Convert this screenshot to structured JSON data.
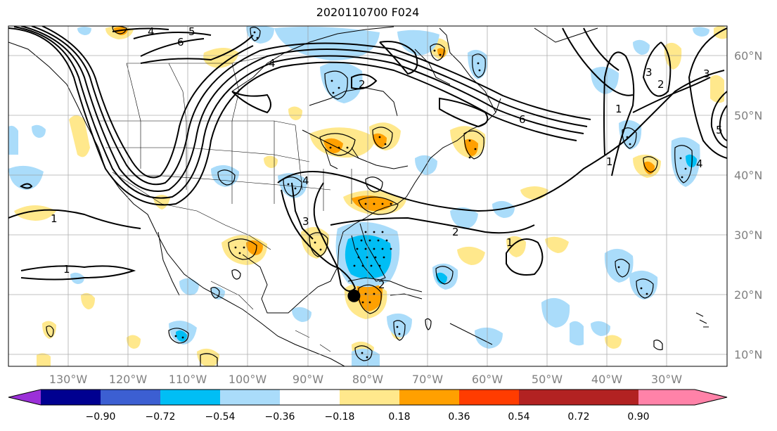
{
  "title": "2020110700 F024",
  "map": {
    "lon_labels": [
      "130°W",
      "120°W",
      "110°W",
      "100°W",
      "90°W",
      "80°W",
      "70°W",
      "60°W",
      "50°W",
      "40°W",
      "30°W"
    ],
    "lat_labels": [
      "60°N",
      "50°N",
      "40°N",
      "30°N",
      "20°N",
      "10°N"
    ],
    "lon_range": [
      -138,
      -18
    ],
    "lat_range": [
      8,
      65
    ],
    "contour_labels": [
      "4",
      "5",
      "6",
      "4",
      "2",
      "6",
      "4",
      "3",
      "3",
      "1",
      "1",
      "2",
      "1",
      "1",
      "1",
      "2",
      "2",
      "3",
      "5",
      "4"
    ],
    "storm_marker": {
      "lon": -80.3,
      "lat": 19.8
    },
    "fill_colors": {
      "neg_light": "#aadcfa",
      "neg_mid": "#00bef5",
      "pos_light": "#ffe88c",
      "pos_mid": "#ffa000"
    }
  },
  "colorbar": {
    "colors": [
      "#9b30d8",
      "#000090",
      "#3c5fd2",
      "#00bef5",
      "#aadcfa",
      "#ffffff",
      "#ffe88c",
      "#ffa000",
      "#ff3c00",
      "#b22222",
      "#ff82a8"
    ],
    "labels": [
      "−0.90",
      "−0.72",
      "−0.54",
      "−0.36",
      "−0.18",
      "0.18",
      "0.36",
      "0.54",
      "0.72",
      "0.90"
    ]
  }
}
